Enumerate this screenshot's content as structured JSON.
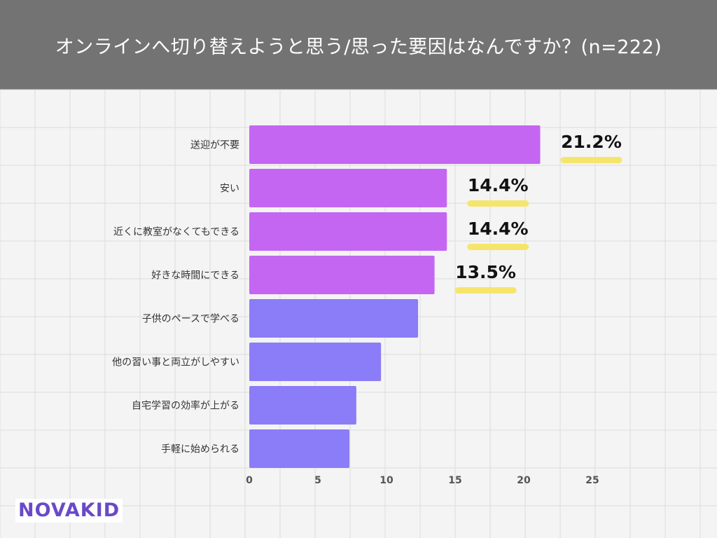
{
  "header": {
    "title": "オンラインへ切り替えようと思う/思った要因はなんですか？(n=222)"
  },
  "logo": {
    "text": "NOVAKID"
  },
  "colors": {
    "header_bg": "#737373",
    "highlight_bar": "#c566f2",
    "normal_bar": "#8b7cf8",
    "marker": "#f6e56c",
    "grid": "#dddddd"
  },
  "chart_data": {
    "type": "bar",
    "orientation": "horizontal",
    "title": "オンラインへ切り替えようと思う/思った要因はなんですか？(n=222)",
    "xlabel": "",
    "ylabel": "",
    "xlim": [
      0,
      25
    ],
    "xticks": [
      0,
      5,
      10,
      15,
      20,
      25
    ],
    "grid": true,
    "categories": [
      "送迎が不要",
      "安い",
      "近くに教室がなくてもできる",
      "好きな時間にできる",
      "子供のペースで学べる",
      "他の習い事と両立がしやすい",
      "自宅学習の効率が上がる",
      "手軽に始められる"
    ],
    "values": [
      21.2,
      14.4,
      14.4,
      13.5,
      12.3,
      9.6,
      7.8,
      7.3
    ],
    "highlighted": [
      true,
      true,
      true,
      true,
      false,
      false,
      false,
      false
    ],
    "value_labels": [
      "21.2%",
      "14.4%",
      "14.4%",
      "13.5%",
      "",
      "",
      "",
      ""
    ]
  }
}
